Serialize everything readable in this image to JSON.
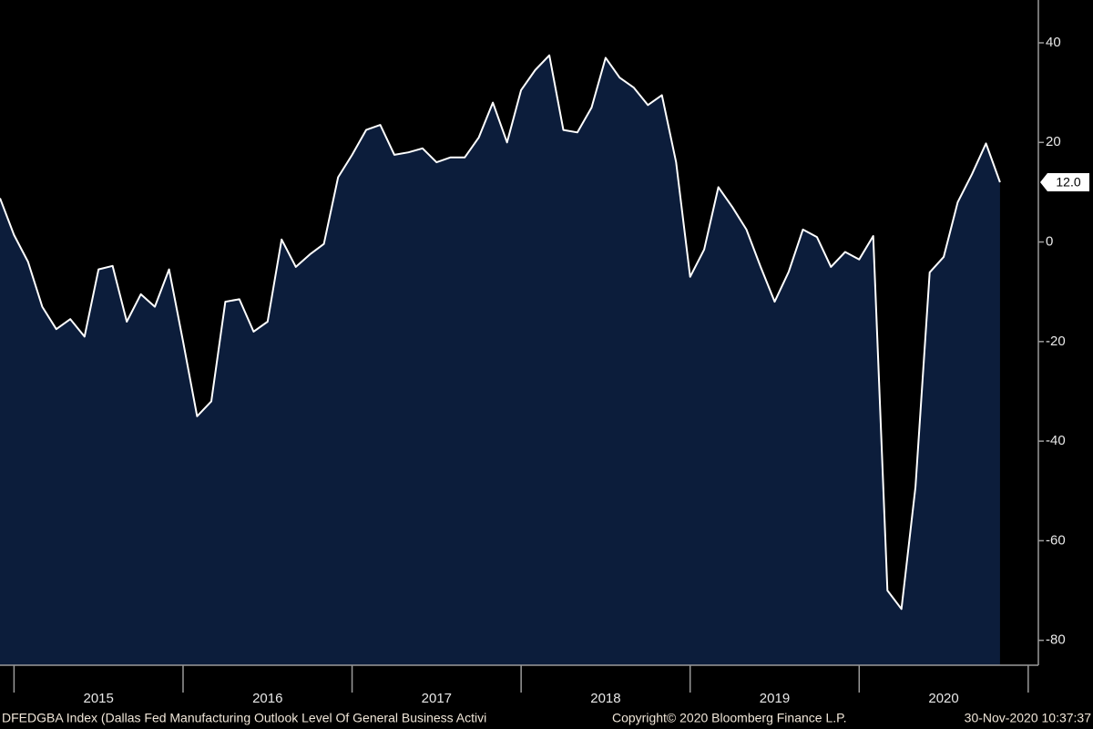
{
  "chart_data": {
    "type": "area",
    "x": [
      2014.917,
      2015.0,
      2015.083,
      2015.167,
      2015.25,
      2015.333,
      2015.417,
      2015.5,
      2015.583,
      2015.667,
      2015.75,
      2015.833,
      2015.917,
      2016.0,
      2016.083,
      2016.167,
      2016.25,
      2016.333,
      2016.417,
      2016.5,
      2016.583,
      2016.667,
      2016.75,
      2016.833,
      2016.917,
      2017.0,
      2017.083,
      2017.167,
      2017.25,
      2017.333,
      2017.417,
      2017.5,
      2017.583,
      2017.667,
      2017.75,
      2017.833,
      2017.917,
      2018.0,
      2018.083,
      2018.167,
      2018.25,
      2018.333,
      2018.417,
      2018.5,
      2018.583,
      2018.667,
      2018.75,
      2018.833,
      2018.917,
      2019.0,
      2019.083,
      2019.167,
      2019.25,
      2019.333,
      2019.417,
      2019.5,
      2019.583,
      2019.667,
      2019.75,
      2019.833,
      2019.917,
      2020.0,
      2020.083,
      2020.167,
      2020.25,
      2020.333,
      2020.417,
      2020.5,
      2020.583,
      2020.667,
      2020.75,
      2020.833
    ],
    "values": [
      8.8,
      1.4,
      -4,
      -13,
      -17.5,
      -15.5,
      -19,
      -5.5,
      -4.8,
      -16,
      -10.5,
      -13,
      -5.5,
      -20,
      -35,
      -32,
      -12,
      -11.5,
      -18,
      -16,
      0.5,
      -5,
      -2.5,
      -0.4,
      13,
      17.5,
      22.5,
      23.5,
      17.5,
      18,
      18.8,
      16,
      17,
      17,
      21,
      28,
      20,
      30.5,
      34.5,
      37.5,
      22.5,
      22,
      27,
      37,
      33,
      31,
      27.5,
      29.5,
      16,
      -7,
      -1.5,
      11,
      7,
      2.5,
      -5,
      -12,
      -6,
      2.5,
      1,
      -5,
      -2,
      -3.5,
      1.2,
      -70,
      -73.7,
      -49.2,
      -6.1,
      -3,
      8,
      13.6,
      19.8,
      12.0
    ],
    "value_labels": [
      null,
      null,
      null,
      null,
      null,
      null,
      null,
      null,
      null,
      null,
      null,
      null,
      null,
      null,
      null,
      null,
      null,
      null,
      null,
      null,
      null,
      null,
      null,
      null,
      null,
      null,
      null,
      null,
      null,
      null,
      null,
      null,
      null,
      null,
      null,
      null,
      null,
      null,
      null,
      null,
      null,
      null,
      null,
      null,
      null,
      null,
      null,
      null,
      null,
      null,
      null,
      null,
      null,
      null,
      null,
      null,
      null,
      null,
      null,
      null,
      null,
      null,
      null,
      null,
      null,
      null,
      null,
      null,
      null,
      null,
      null,
      "12.0"
    ],
    "color": "#0c1d3b",
    "line_color": "#ffffff",
    "xlim": [
      2014.917,
      2021.06
    ],
    "xticks": [
      {
        "value": 2015.5,
        "label": "2015"
      },
      {
        "value": 2016.5,
        "label": "2016"
      },
      {
        "value": 2017.5,
        "label": "2017"
      },
      {
        "value": 2018.5,
        "label": "2018"
      },
      {
        "value": 2019.5,
        "label": "2019"
      },
      {
        "value": 2020.5,
        "label": "2020"
      }
    ],
    "ylim": [
      -85,
      48.6
    ],
    "yticks": [
      40,
      20,
      0,
      -20,
      -40,
      -60,
      -80
    ],
    "footer_left": "DFEDGBA Index (Dallas Fed Manufacturing Outlook Level Of General Business Activi",
    "footer_center": "Copyright© 2020 Bloomberg Finance L.P.",
    "footer_right": "30-Nov-2020 10:37:37"
  }
}
